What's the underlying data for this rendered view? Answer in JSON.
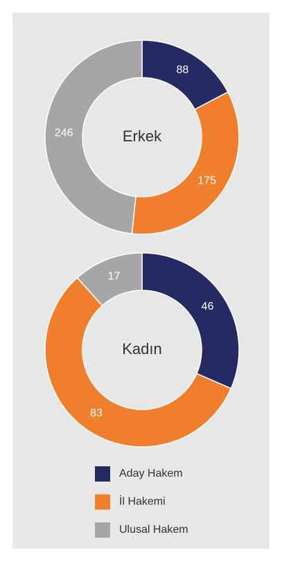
{
  "chart_data": [
    {
      "type": "donut",
      "title": "Erkek",
      "categories": [
        "Aday Hakem",
        "İl Hakemi",
        "Ulusal Hakem"
      ],
      "values": [
        88,
        175,
        246
      ],
      "colors": [
        "#262a62",
        "#ef7f2d",
        "#a6a6a6"
      ]
    },
    {
      "type": "donut",
      "title": "Kadın",
      "categories": [
        "Aday Hakem",
        "İl Hakemi",
        "Ulusal Hakem"
      ],
      "values": [
        46,
        83,
        17
      ],
      "colors": [
        "#262a62",
        "#ef7f2d",
        "#a6a6a6"
      ]
    }
  ]
}
